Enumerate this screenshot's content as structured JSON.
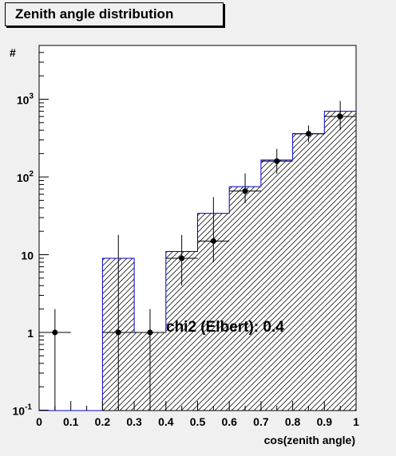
{
  "title": "Zenith angle distribution",
  "chart_data": {
    "type": "bar",
    "title": "Zenith angle distribution",
    "xlabel": "cos(zenith angle)",
    "ylabel": "#",
    "xlim": [
      0,
      1
    ],
    "ylim": [
      0.1,
      5000
    ],
    "ylog": true,
    "x_tick_labels": [
      "0",
      "0.1",
      "0.2",
      "0.3",
      "0.4",
      "0.5",
      "0.6",
      "0.7",
      "0.8",
      "0.9",
      "1"
    ],
    "y_tick_labels": [
      {
        "base": "10",
        "exp": "-1",
        "value": 0.1
      },
      {
        "base": "1",
        "exp": "",
        "value": 1
      },
      {
        "base": "10",
        "exp": "",
        "value": 10
      },
      {
        "base": "10",
        "exp": "2",
        "value": 100
      },
      {
        "base": "10",
        "exp": "3",
        "value": 1000
      }
    ],
    "histogram": {
      "bin_edges": [
        0,
        0.1,
        0.2,
        0.3,
        0.4,
        0.5,
        0.6,
        0.7,
        0.8,
        0.9,
        1.0
      ],
      "values": [
        0,
        0,
        9,
        1,
        11,
        34,
        75,
        165,
        360,
        700
      ],
      "fill": "hatched",
      "color": "#0000cc"
    },
    "data_points": {
      "x": [
        0.05,
        0.25,
        0.35,
        0.45,
        0.55,
        0.65,
        0.75,
        0.85,
        0.95
      ],
      "y": [
        1,
        1,
        1,
        9,
        15,
        66,
        160,
        360,
        600
      ],
      "y_err_low": [
        0.9,
        0.9,
        0.9,
        5,
        7,
        20,
        50,
        80,
        200
      ],
      "y_err_high": [
        1,
        17,
        1,
        9,
        40,
        45,
        70,
        100,
        350
      ],
      "x_err": [
        0.05,
        0.05,
        0.05,
        0.05,
        0.05,
        0.05,
        0.05,
        0.05,
        0.05
      ],
      "color": "#000000"
    },
    "annotation": "chi2 (Elbert): 0.4"
  }
}
